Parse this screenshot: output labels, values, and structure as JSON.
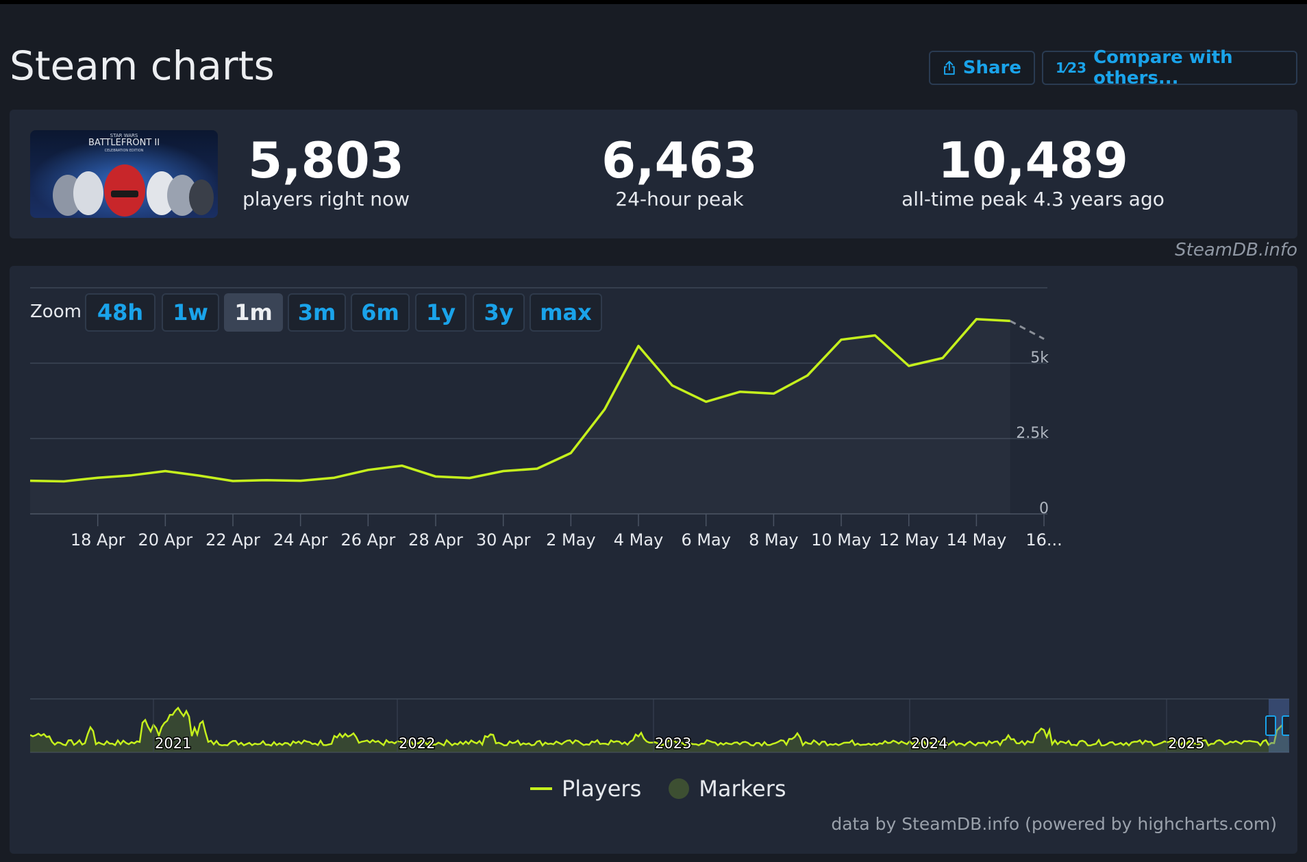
{
  "header": {
    "title": "Steam charts",
    "share_label": "Share",
    "compare_label": "Compare with others...",
    "compare_icon_text": "1⁄23"
  },
  "stats": {
    "players_now": "5,803",
    "players_now_label": "players right now",
    "peak_24h": "6,463",
    "peak_24h_label": "24-hour peak",
    "all_time_peak": "10,489",
    "all_time_peak_label": "all-time peak 4.3 years ago",
    "game_image_title": "BATTLEFRONT II",
    "game_image_sup": "STAR WARS",
    "game_image_sub": "CELEBRATION EDITION"
  },
  "watermark": "SteamDB.info",
  "zoom": {
    "label": "Zoom",
    "options": [
      "48h",
      "1w",
      "1m",
      "3m",
      "6m",
      "1y",
      "3y",
      "max"
    ],
    "active": "1m"
  },
  "legend": {
    "players": "Players",
    "markers": "Markers"
  },
  "credits": "data by SteamDB.info (powered by highcharts.com)",
  "colors": {
    "series": "#c5f01d",
    "accent": "#1aa3ea",
    "panel": "#212836",
    "marker": "#3d4f32"
  },
  "chart_data": {
    "type": "line",
    "title": "",
    "xlabel": "",
    "ylabel": "",
    "ylim": [
      0,
      7500
    ],
    "yticks": [
      0,
      2500,
      5000
    ],
    "ytick_labels": [
      "0",
      "2.5k",
      "5k"
    ],
    "xlim": [
      15.9,
      46.0
    ],
    "xticks": [
      17.9,
      19.9,
      21.9,
      23.9,
      25.9,
      27.9,
      29.9,
      31.9,
      33.9,
      35.9,
      37.9,
      39.9,
      41.9,
      43.9,
      45.9
    ],
    "xtick_labels": [
      "18 Apr",
      "20 Apr",
      "22 Apr",
      "24 Apr",
      "26 Apr",
      "28 Apr",
      "30 Apr",
      "2 May",
      "4 May",
      "6 May",
      "8 May",
      "10 May",
      "12 May",
      "14 May",
      "16..."
    ],
    "series": [
      {
        "name": "Players",
        "x": [
          15.9,
          16.9,
          17.9,
          18.9,
          19.9,
          20.9,
          21.9,
          22.9,
          23.9,
          24.9,
          25.9,
          26.9,
          27.9,
          28.9,
          29.9,
          30.9,
          31.9,
          32.9,
          33.9,
          34.9,
          35.9,
          36.9,
          37.9,
          38.9,
          39.9,
          40.9,
          41.9,
          42.9,
          43.9,
          44.9
        ],
        "values": [
          1100,
          1080,
          1200,
          1280,
          1420,
          1270,
          1090,
          1120,
          1100,
          1200,
          1460,
          1600,
          1240,
          1190,
          1420,
          1500,
          2020,
          3470,
          5570,
          4260,
          3720,
          4050,
          3990,
          4590,
          5780,
          5920,
          4910,
          5170,
          6460,
          6400
        ]
      },
      {
        "name": "Players (incomplete)",
        "x": [
          44.9,
          45.9
        ],
        "values": [
          6400,
          5803
        ]
      }
    ],
    "navigator": {
      "year_labels": [
        "2021",
        "2022",
        "2023",
        "2024",
        "2025"
      ]
    }
  }
}
